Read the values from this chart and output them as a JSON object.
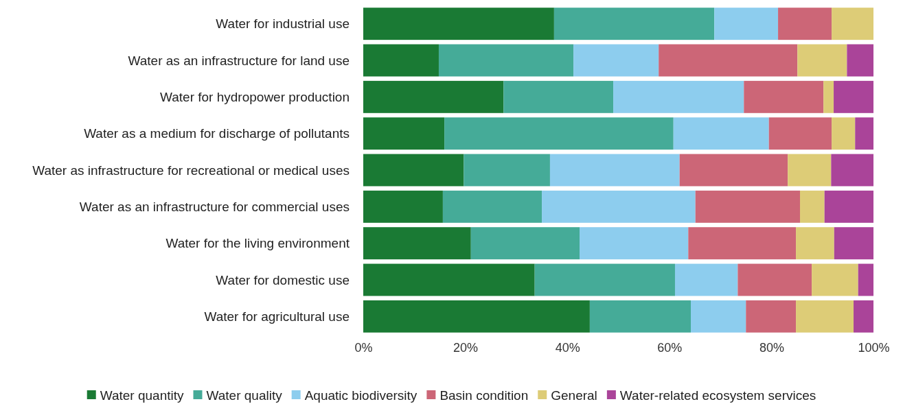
{
  "chart_data": {
    "type": "bar",
    "orientation": "horizontal",
    "stacked": true,
    "categories": [
      "Water for industrial use",
      "Water as an infrastructure for land use",
      "Water for hydropower production",
      "Water as a medium for discharge of pollutants",
      "Water as infrastructure for recreational or medical uses",
      "Water as an infrastructure for commercial uses",
      "Water for the living environment",
      "Water for domestic use",
      "Water for agricultural use"
    ],
    "series": [
      {
        "name": "Water quantity",
        "color": "#1a7a34",
        "values": [
          37.4,
          14.8,
          27.5,
          15.9,
          19.7,
          15.6,
          21.1,
          33.6,
          44.4
        ]
      },
      {
        "name": "Water quality",
        "color": "#45ab98",
        "values": [
          31.4,
          26.4,
          21.5,
          44.9,
          16.9,
          19.4,
          21.3,
          27.5,
          19.8
        ]
      },
      {
        "name": "Aquatic biodiversity",
        "color": "#8dcdee",
        "values": [
          12.5,
          16.7,
          25.6,
          18.7,
          25.4,
          30.1,
          21.3,
          12.3,
          10.8
        ]
      },
      {
        "name": "Basin condition",
        "color": "#cc6677",
        "values": [
          10.5,
          27.2,
          15.6,
          12.3,
          21.2,
          20.5,
          21.1,
          14.5,
          9.8
        ]
      },
      {
        "name": "General",
        "color": "#ddcc77",
        "values": [
          8.2,
          9.7,
          2.0,
          4.6,
          8.5,
          4.8,
          7.5,
          9.1,
          11.3
        ]
      },
      {
        "name": "Water-related ecosystem services",
        "color": "#aa4499",
        "values": [
          0,
          5.2,
          7.8,
          3.6,
          8.3,
          9.6,
          7.7,
          3.0,
          3.9
        ]
      }
    ],
    "xlim": [
      0,
      100
    ],
    "xticks": [
      {
        "value": 0,
        "label": "0%"
      },
      {
        "value": 20,
        "label": "20%"
      },
      {
        "value": 40,
        "label": "40%"
      },
      {
        "value": 60,
        "label": "60%"
      },
      {
        "value": 80,
        "label": "80%"
      },
      {
        "value": 100,
        "label": "100%"
      }
    ],
    "grid": false,
    "legend": "bottom"
  }
}
